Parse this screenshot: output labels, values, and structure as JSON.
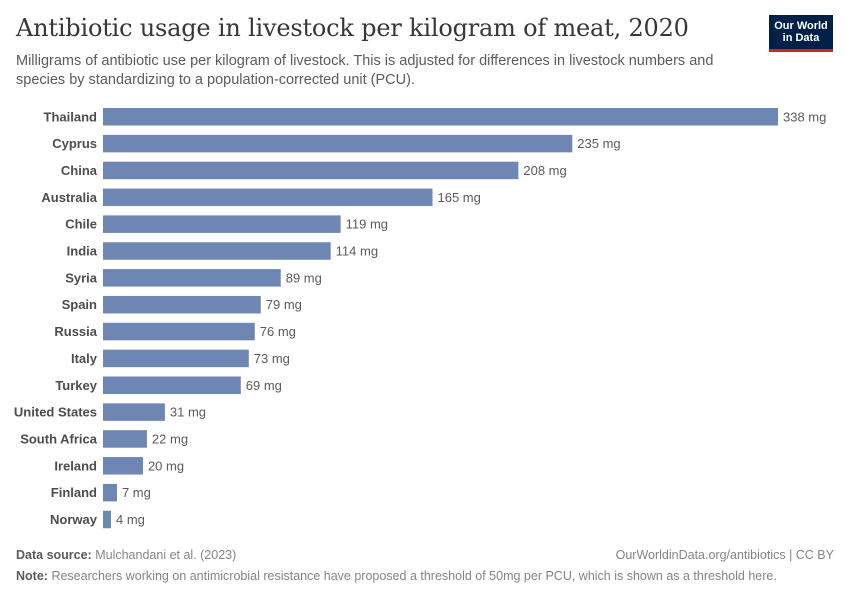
{
  "header": {
    "title": "Antibiotic usage in livestock per kilogram of meat, 2020",
    "subtitle": "Milligrams of antibiotic use per kilogram of livestock. This is adjusted for differences in livestock numbers and species by standardizing to a population-corrected unit (PCU)."
  },
  "logo": {
    "line1": "Our World",
    "line2": "in Data",
    "bg_color": "#002147",
    "accent_color": "#ce261e"
  },
  "footer": {
    "source_label": "Data source:",
    "source_text": "Mulchandani et al. (2023)",
    "credit": "OurWorldinData.org/antibiotics | CC BY",
    "note_label": "Note:",
    "note_text": "Researchers working on antimicrobial resistance have proposed a threshold of 50mg per PCU, which is shown as a threshold here."
  },
  "chart_data": {
    "type": "bar",
    "orientation": "horizontal",
    "title": "Antibiotic usage in livestock per kilogram of meat, 2020",
    "unit": "mg",
    "bar_color": "#6d86b4",
    "categories": [
      "Thailand",
      "Cyprus",
      "China",
      "Australia",
      "Chile",
      "India",
      "Syria",
      "Spain",
      "Russia",
      "Italy",
      "Turkey",
      "United States",
      "South Africa",
      "Ireland",
      "Finland",
      "Norway"
    ],
    "values": [
      338,
      235,
      208,
      165,
      119,
      114,
      89,
      79,
      76,
      73,
      69,
      31,
      22,
      20,
      7,
      4
    ],
    "value_labels": [
      "338 mg",
      "235 mg",
      "208 mg",
      "165 mg",
      "119 mg",
      "114 mg",
      "89 mg",
      "79 mg",
      "76 mg",
      "73 mg",
      "69 mg",
      "31 mg",
      "22 mg",
      "20 mg",
      "7 mg",
      "4 mg"
    ],
    "xlim": [
      0,
      338
    ]
  }
}
